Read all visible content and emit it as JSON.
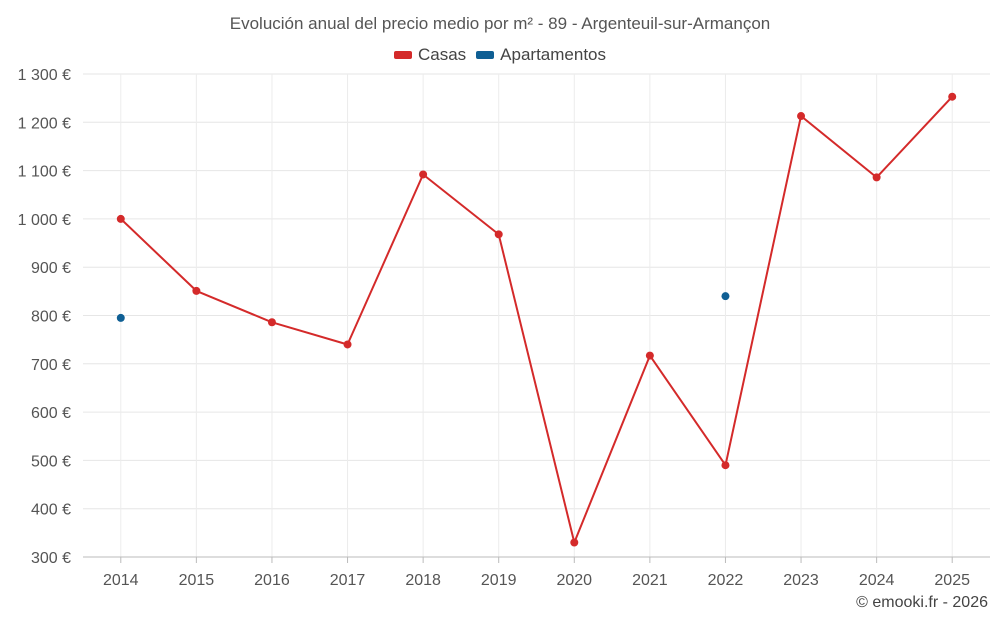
{
  "chart_data": {
    "type": "line",
    "title": "Evolución anual del precio medio por m² - 89 - Argenteuil-sur-Armançon",
    "xlabel": "",
    "ylabel": "",
    "categories": [
      "2014",
      "2015",
      "2016",
      "2017",
      "2018",
      "2019",
      "2020",
      "2021",
      "2022",
      "2023",
      "2024",
      "2025"
    ],
    "ylim": [
      300,
      1300
    ],
    "yticks": [
      300,
      400,
      500,
      600,
      700,
      800,
      900,
      1000,
      1100,
      1200,
      1300
    ],
    "ytick_labels": [
      "300 €",
      "400 €",
      "500 €",
      "600 €",
      "700 €",
      "800 €",
      "900 €",
      "1 000 €",
      "1 100 €",
      "1 200 €",
      "1 300 €"
    ],
    "grid": true,
    "legend_position": "top-center",
    "series": [
      {
        "name": "Casas",
        "color": "#d42a2a",
        "values": [
          1000,
          851,
          786,
          740,
          1092,
          968,
          330,
          717,
          490,
          1213,
          1086,
          1253
        ]
      },
      {
        "name": "Apartamentos",
        "color": "#0f5f94",
        "values": [
          795,
          null,
          null,
          null,
          null,
          null,
          null,
          null,
          840,
          null,
          null,
          null
        ]
      }
    ]
  },
  "legend": {
    "casas": "Casas",
    "apartamentos": "Apartamentos"
  },
  "credit": "© emooki.fr - 2026"
}
